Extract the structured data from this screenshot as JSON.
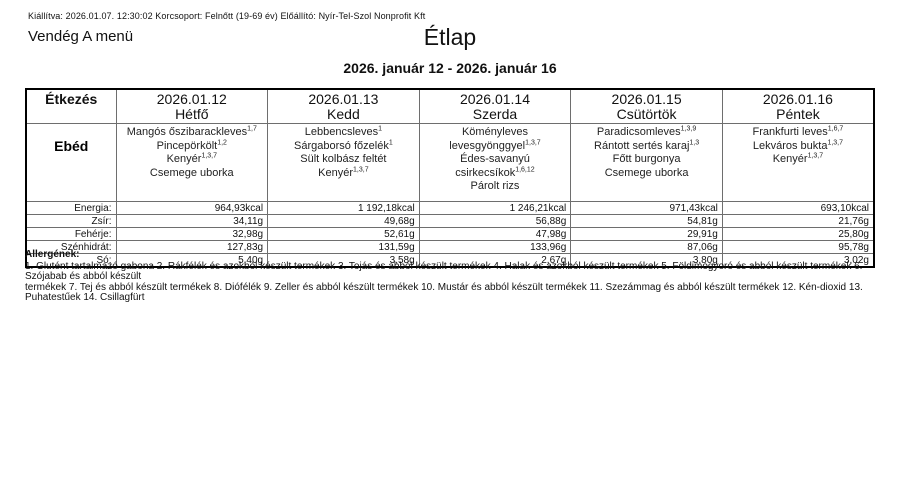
{
  "meta": {
    "issued_line": "Kiállítva: 2026.01.07. 12:30:02 Korcsoport: Felnőtt (19-69 év) Előállító: Nyír-Tel-Szol Nonprofit Kft"
  },
  "menu_name": "Vendég A menü",
  "title": "Étlap",
  "date_range": "2026. január 12 - 2026. január 16",
  "table": {
    "corner_label": "Étkezés",
    "meal_label": "Ebéd",
    "days": [
      {
        "date": "2026.01.12",
        "name": "Hétfő",
        "items": [
          {
            "text": "Mangós őszibarackleves",
            "sup": "1,7"
          },
          {
            "text": "Pincepörkölt",
            "sup": "1,2"
          },
          {
            "text": "Kenyér",
            "sup": "1,3,7"
          },
          {
            "text": "Csemege uborka",
            "sup": ""
          }
        ]
      },
      {
        "date": "2026.01.13",
        "name": "Kedd",
        "items": [
          {
            "text": "Lebbencsleves",
            "sup": "1"
          },
          {
            "text": "Sárgaborsó főzelék",
            "sup": "1"
          },
          {
            "text": "Sült kolbász feltét",
            "sup": ""
          },
          {
            "text": "Kenyér",
            "sup": "1,3,7"
          }
        ]
      },
      {
        "date": "2026.01.14",
        "name": "Szerda",
        "items": [
          {
            "text": "Köményleves levesgyönggyel",
            "sup": "1,3,7"
          },
          {
            "text": "Édes-savanyú csirkecsíkok",
            "sup": "1,6,12"
          },
          {
            "text": "Párolt rizs",
            "sup": ""
          }
        ]
      },
      {
        "date": "2026.01.15",
        "name": "Csütörtök",
        "items": [
          {
            "text": "Paradicsomleves",
            "sup": "1,3,9"
          },
          {
            "text": "Rántott sertés karaj",
            "sup": "1,3"
          },
          {
            "text": "Főtt burgonya",
            "sup": ""
          },
          {
            "text": "Csemege uborka",
            "sup": ""
          }
        ]
      },
      {
        "date": "2026.01.16",
        "name": "Péntek",
        "items": [
          {
            "text": "Frankfurti leves",
            "sup": "1,6,7"
          },
          {
            "text": "Lekváros bukta",
            "sup": "1,3,7"
          },
          {
            "text": "Kenyér",
            "sup": "1,3,7"
          }
        ]
      }
    ],
    "nutrition": [
      {
        "label": "Energia:",
        "values": [
          "964,93kcal",
          "1 192,18kcal",
          "1 246,21kcal",
          "971,43kcal",
          "693,10kcal"
        ]
      },
      {
        "label": "Zsír:",
        "values": [
          "34,11g",
          "49,68g",
          "56,88g",
          "54,81g",
          "21,76g"
        ]
      },
      {
        "label": "Fehérje:",
        "values": [
          "32,98g",
          "52,61g",
          "47,98g",
          "29,91g",
          "25,80g"
        ]
      },
      {
        "label": "Szénhidrát:",
        "values": [
          "127,83g",
          "131,59g",
          "133,96g",
          "87,06g",
          "95,78g"
        ]
      },
      {
        "label": "Só:",
        "values": [
          "5,40g",
          "3,58g",
          "2,67g",
          "3,80g",
          "3,02g"
        ]
      }
    ]
  },
  "allergens": {
    "heading": "Allergének:",
    "line1": "1. Glutént tartalmazó gabona 2. Rákfélék és azokból készült termékek 3. Tojás és abból készült termékek 4. Halak és azokból készült termékek 5. Földimogyoró és abból készült termékek 6. Szójabab és abból készült",
    "line2": "termékek 7. Tej és abból készült termékek 8. Diófélék 9. Zeller és abból készült termékek 10. Mustár és abból készült termékek 11. Szezámmag és abból készült termékek 12. Kén-dioxid 13. Puhatestűek 14. Csillagfürt"
  }
}
